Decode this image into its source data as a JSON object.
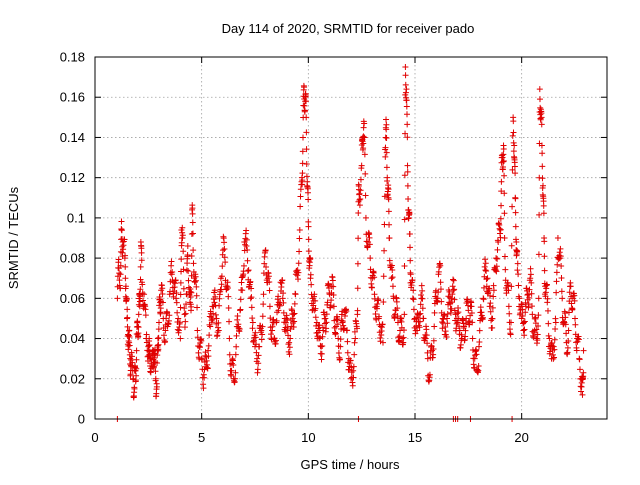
{
  "chart_data": {
    "type": "scatter",
    "title": "Day 114 of 2020, SRMTID for receiver pado",
    "xlabel": "GPS time / hours",
    "ylabel": "SRMTID / TECUs",
    "xlim": [
      0,
      24
    ],
    "ylim": [
      0,
      0.18
    ],
    "x_ticks": [
      0,
      5,
      10,
      15,
      20
    ],
    "x_tick_labels": [
      "0",
      "5",
      "10",
      "15",
      "20"
    ],
    "y_ticks": [
      0,
      0.02,
      0.04,
      0.06,
      0.08,
      0.1,
      0.12,
      0.14,
      0.16,
      0.18
    ],
    "y_tick_labels": [
      "0",
      "0.02",
      "0.04",
      "0.06",
      "0.08",
      "0.1",
      "0.12",
      "0.14",
      "0.16",
      "0.18"
    ],
    "grid": true,
    "marker": "+",
    "series_color": "#e00000",
    "series": [
      {
        "name": "SRMTID",
        "points": [
          [
            1.05,
            0.06
          ],
          [
            1.12,
            0.075
          ],
          [
            1.2,
            0.072
          ],
          [
            1.25,
            0.094
          ],
          [
            1.3,
            0.088
          ],
          [
            1.4,
            0.08
          ],
          [
            1.45,
            0.066
          ],
          [
            1.5,
            0.05
          ],
          [
            1.55,
            0.042
          ],
          [
            1.6,
            0.038
          ],
          [
            1.65,
            0.03
          ],
          [
            1.7,
            0.026
          ],
          [
            1.8,
            0.02
          ],
          [
            1.85,
            0.015
          ],
          [
            1.9,
            0.024
          ],
          [
            1.95,
            0.034
          ],
          [
            2.0,
            0.046
          ],
          [
            2.05,
            0.052
          ],
          [
            2.1,
            0.056
          ],
          [
            2.15,
            0.088
          ],
          [
            2.2,
            0.068
          ],
          [
            2.3,
            0.062
          ],
          [
            2.4,
            0.04
          ],
          [
            2.5,
            0.036
          ],
          [
            2.55,
            0.032
          ],
          [
            2.6,
            0.03
          ],
          [
            2.7,
            0.026
          ],
          [
            2.75,
            0.034
          ],
          [
            2.8,
            0.028
          ],
          [
            2.85,
            0.02
          ],
          [
            2.9,
            0.016
          ],
          [
            2.95,
            0.04
          ],
          [
            3.0,
            0.048
          ],
          [
            3.05,
            0.058
          ],
          [
            3.1,
            0.064
          ],
          [
            3.2,
            0.05
          ],
          [
            3.3,
            0.044
          ],
          [
            3.4,
            0.046
          ],
          [
            3.5,
            0.062
          ],
          [
            3.6,
            0.072
          ],
          [
            3.7,
            0.068
          ],
          [
            3.8,
            0.06
          ],
          [
            3.9,
            0.05
          ],
          [
            4.0,
            0.04
          ],
          [
            4.05,
            0.094
          ],
          [
            4.1,
            0.09
          ],
          [
            4.2,
            0.052
          ],
          [
            4.3,
            0.062
          ],
          [
            4.35,
            0.086
          ],
          [
            4.45,
            0.058
          ],
          [
            4.5,
            0.054
          ],
          [
            4.55,
            0.104
          ],
          [
            4.6,
            0.084
          ],
          [
            4.7,
            0.072
          ],
          [
            4.8,
            0.044
          ],
          [
            4.9,
            0.036
          ],
          [
            5.0,
            0.03
          ],
          [
            5.1,
            0.022
          ],
          [
            5.2,
            0.026
          ],
          [
            5.3,
            0.034
          ],
          [
            5.4,
            0.046
          ],
          [
            5.5,
            0.056
          ],
          [
            5.6,
            0.058
          ],
          [
            5.7,
            0.05
          ],
          [
            5.8,
            0.044
          ],
          [
            5.9,
            0.07
          ],
          [
            6.0,
            0.084
          ],
          [
            6.1,
            0.078
          ],
          [
            6.2,
            0.066
          ],
          [
            6.3,
            0.04
          ],
          [
            6.4,
            0.024
          ],
          [
            6.5,
            0.02
          ],
          [
            6.6,
            0.032
          ],
          [
            6.7,
            0.046
          ],
          [
            6.8,
            0.054
          ],
          [
            6.9,
            0.064
          ],
          [
            7.0,
            0.088
          ],
          [
            7.1,
            0.086
          ],
          [
            7.2,
            0.074
          ],
          [
            7.3,
            0.06
          ],
          [
            7.4,
            0.048
          ],
          [
            7.5,
            0.036
          ],
          [
            7.6,
            0.03
          ],
          [
            7.7,
            0.036
          ],
          [
            7.8,
            0.044
          ],
          [
            7.9,
            0.062
          ],
          [
            8.0,
            0.084
          ],
          [
            8.1,
            0.07
          ],
          [
            8.2,
            0.056
          ],
          [
            8.3,
            0.044
          ],
          [
            8.4,
            0.04
          ],
          [
            8.5,
            0.048
          ],
          [
            8.6,
            0.054
          ],
          [
            8.7,
            0.068
          ],
          [
            8.8,
            0.06
          ],
          [
            8.9,
            0.05
          ],
          [
            9.0,
            0.044
          ],
          [
            9.1,
            0.038
          ],
          [
            9.2,
            0.046
          ],
          [
            9.3,
            0.052
          ],
          [
            9.4,
            0.062
          ],
          [
            9.5,
            0.074
          ],
          [
            9.6,
            0.094
          ],
          [
            9.7,
            0.12
          ],
          [
            9.75,
            0.14
          ],
          [
            9.8,
            0.165
          ],
          [
            9.85,
            0.158
          ],
          [
            9.9,
            0.15
          ],
          [
            9.95,
            0.118
          ],
          [
            10.0,
            0.098
          ],
          [
            10.05,
            0.08
          ],
          [
            10.1,
            0.07
          ],
          [
            10.2,
            0.06
          ],
          [
            10.3,
            0.054
          ],
          [
            10.4,
            0.048
          ],
          [
            10.5,
            0.04
          ],
          [
            10.6,
            0.036
          ],
          [
            10.7,
            0.044
          ],
          [
            10.8,
            0.05
          ],
          [
            10.9,
            0.058
          ],
          [
            11.0,
            0.062
          ],
          [
            11.1,
            0.066
          ],
          [
            11.2,
            0.056
          ],
          [
            11.3,
            0.046
          ],
          [
            11.4,
            0.04
          ],
          [
            11.5,
            0.036
          ],
          [
            11.6,
            0.048
          ],
          [
            11.7,
            0.054
          ],
          [
            11.8,
            0.044
          ],
          [
            11.9,
            0.03
          ],
          [
            12.0,
            0.02
          ],
          [
            12.1,
            0.024
          ],
          [
            12.2,
            0.04
          ],
          [
            12.3,
            0.052
          ],
          [
            12.35,
            0.108
          ],
          [
            12.4,
            0.112
          ],
          [
            12.5,
            0.126
          ],
          [
            12.55,
            0.14
          ],
          [
            12.6,
            0.148
          ],
          [
            12.7,
            0.1
          ],
          [
            12.8,
            0.088
          ],
          [
            12.9,
            0.08
          ],
          [
            13.0,
            0.07
          ],
          [
            13.1,
            0.062
          ],
          [
            13.2,
            0.056
          ],
          [
            13.3,
            0.05
          ],
          [
            13.4,
            0.046
          ],
          [
            13.5,
            0.038
          ],
          [
            13.6,
            0.134
          ],
          [
            13.65,
            0.144
          ],
          [
            13.7,
            0.12
          ],
          [
            13.75,
            0.11
          ],
          [
            13.8,
            0.09
          ],
          [
            13.9,
            0.07
          ],
          [
            14.0,
            0.06
          ],
          [
            14.1,
            0.054
          ],
          [
            14.2,
            0.048
          ],
          [
            14.3,
            0.044
          ],
          [
            14.4,
            0.04
          ],
          [
            14.5,
            0.052
          ],
          [
            14.55,
            0.175
          ],
          [
            14.6,
            0.164
          ],
          [
            14.65,
            0.126
          ],
          [
            14.7,
            0.104
          ],
          [
            14.75,
            0.092
          ],
          [
            14.8,
            0.072
          ],
          [
            14.9,
            0.06
          ],
          [
            15.0,
            0.05
          ],
          [
            15.1,
            0.044
          ],
          [
            15.2,
            0.052
          ],
          [
            15.3,
            0.06
          ],
          [
            15.4,
            0.05
          ],
          [
            15.5,
            0.04
          ],
          [
            15.6,
            0.03
          ],
          [
            15.7,
            0.022
          ],
          [
            15.8,
            0.034
          ],
          [
            15.9,
            0.046
          ],
          [
            16.0,
            0.06
          ],
          [
            16.1,
            0.072
          ],
          [
            16.2,
            0.068
          ],
          [
            16.3,
            0.05
          ],
          [
            16.4,
            0.042
          ],
          [
            16.5,
            0.05
          ],
          [
            16.6,
            0.058
          ],
          [
            16.7,
            0.06
          ],
          [
            16.8,
            0.064
          ],
          [
            16.9,
            0.052
          ],
          [
            17.0,
            0.048
          ],
          [
            17.1,
            0.044
          ],
          [
            17.2,
            0.04
          ],
          [
            17.3,
            0.046
          ],
          [
            17.4,
            0.05
          ],
          [
            17.5,
            0.054
          ],
          [
            17.6,
            0.056
          ],
          [
            17.7,
            0.04
          ],
          [
            17.8,
            0.03
          ],
          [
            17.9,
            0.024
          ],
          [
            18.0,
            0.036
          ],
          [
            18.1,
            0.05
          ],
          [
            18.2,
            0.06
          ],
          [
            18.3,
            0.074
          ],
          [
            18.4,
            0.07
          ],
          [
            18.5,
            0.056
          ],
          [
            18.6,
            0.05
          ],
          [
            18.7,
            0.064
          ],
          [
            18.8,
            0.08
          ],
          [
            18.9,
            0.088
          ],
          [
            19.0,
            0.094
          ],
          [
            19.05,
            0.118
          ],
          [
            19.1,
            0.13
          ],
          [
            19.15,
            0.136
          ],
          [
            19.2,
            0.09
          ],
          [
            19.3,
            0.064
          ],
          [
            19.4,
            0.056
          ],
          [
            19.5,
            0.048
          ],
          [
            19.6,
            0.15
          ],
          [
            19.65,
            0.136
          ],
          [
            19.7,
            0.11
          ],
          [
            19.75,
            0.088
          ],
          [
            19.8,
            0.074
          ],
          [
            19.9,
            0.06
          ],
          [
            20.0,
            0.05
          ],
          [
            20.1,
            0.048
          ],
          [
            20.2,
            0.056
          ],
          [
            20.3,
            0.062
          ],
          [
            20.4,
            0.07
          ],
          [
            20.5,
            0.052
          ],
          [
            20.6,
            0.044
          ],
          [
            20.7,
            0.04
          ],
          [
            20.8,
            0.06
          ],
          [
            20.85,
            0.164
          ],
          [
            20.9,
            0.154
          ],
          [
            20.95,
            0.136
          ],
          [
            21.0,
            0.116
          ],
          [
            21.05,
            0.09
          ],
          [
            21.1,
            0.066
          ],
          [
            21.2,
            0.058
          ],
          [
            21.3,
            0.04
          ],
          [
            21.4,
            0.03
          ],
          [
            21.5,
            0.036
          ],
          [
            21.6,
            0.048
          ],
          [
            21.7,
            0.09
          ],
          [
            21.8,
            0.08
          ],
          [
            21.9,
            0.06
          ],
          [
            22.0,
            0.048
          ],
          [
            22.1,
            0.038
          ],
          [
            22.2,
            0.044
          ],
          [
            22.3,
            0.066
          ],
          [
            22.4,
            0.06
          ],
          [
            22.5,
            0.05
          ],
          [
            22.6,
            0.04
          ],
          [
            22.7,
            0.03
          ],
          [
            22.8,
            0.02
          ],
          [
            22.85,
            0.012
          ],
          [
            22.9,
            0.034
          ]
        ],
        "zero_points": [
          1.05,
          12.35,
          16.8,
          16.9,
          17.0,
          17.6,
          19.55
        ]
      }
    ]
  }
}
